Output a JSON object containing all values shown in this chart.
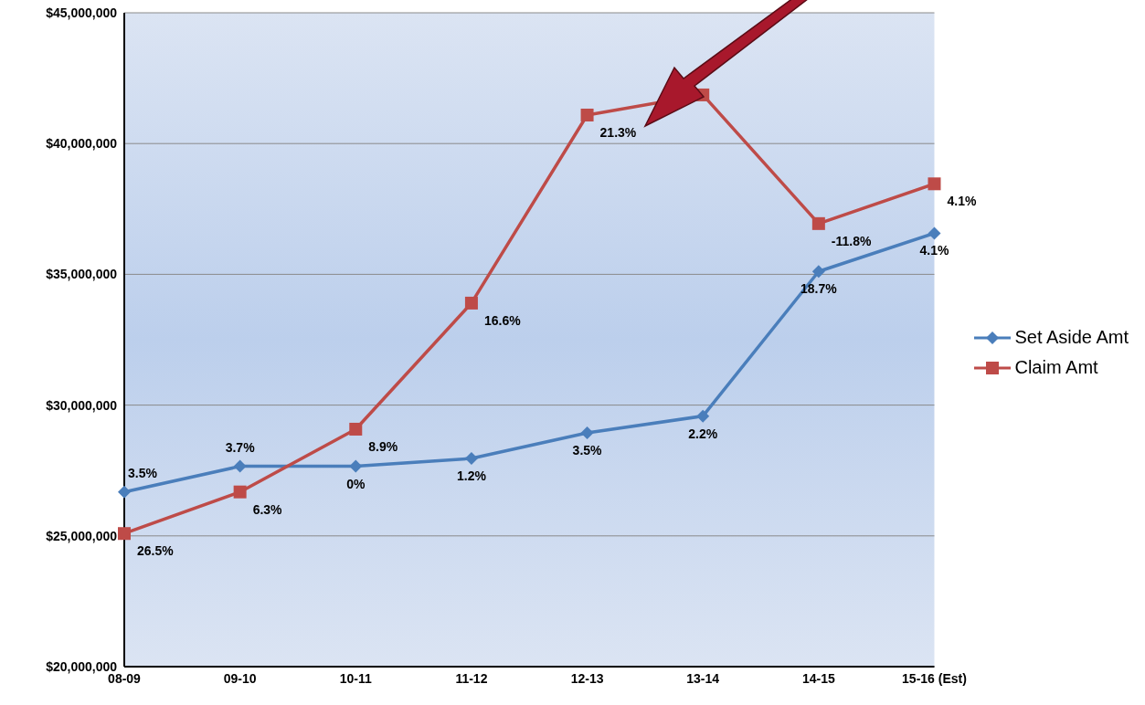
{
  "chart_data": {
    "type": "line",
    "categories": [
      "08-09",
      "09-10",
      "10-11",
      "11-12",
      "12-13",
      "13-14",
      "14-15",
      "15-16 (Est)"
    ],
    "series": [
      {
        "name": "Set Aside Amt",
        "color": "#4a7ebb",
        "marker": "diamond",
        "values": [
          26680000,
          27660000,
          27660000,
          27960000,
          28940000,
          29580000,
          35110000,
          36570000
        ]
      },
      {
        "name": "Claim Amt",
        "color": "#be4b48",
        "marker": "square",
        "values": [
          25090000,
          26680000,
          29080000,
          33900000,
          41090000,
          41860000,
          36940000,
          38460000
        ]
      }
    ],
    "annotations": [
      {
        "text": "3.5%",
        "x": "08-09",
        "y": 26680000
      },
      {
        "text": "3.7%",
        "x": "09-10",
        "y": 27660000
      },
      {
        "text": "0%",
        "x": "10-11",
        "y": 27660000
      },
      {
        "text": "1.2%",
        "x": "11-12",
        "y": 27960000
      },
      {
        "text": "3.5%",
        "x": "12-13",
        "y": 28940000
      },
      {
        "text": "2.2%",
        "x": "13-14",
        "y": 29580000
      },
      {
        "text": "18.7%",
        "x": "14-15",
        "y": 35110000
      },
      {
        "text": "4.1%",
        "x": "15-16 (Est)",
        "y": 36570000
      },
      {
        "text": "26.5%",
        "x": "08-09",
        "y": 25090000
      },
      {
        "text": "6.3%",
        "x": "09-10",
        "y": 26680000
      },
      {
        "text": "8.9%",
        "x": "10-11",
        "y": 29080000
      },
      {
        "text": "16.6%",
        "x": "11-12",
        "y": 33900000
      },
      {
        "text": "21.3%",
        "x": "12-13",
        "y": 41090000
      },
      {
        "text": "-11.8%",
        "x": "14-15",
        "y": 36940000
      },
      {
        "text": "4.1%",
        "x": "15-16 (Est)",
        "y": 38460000
      }
    ],
    "ylim": [
      20000000,
      45000000
    ],
    "yticks": [
      {
        "value": 20000000,
        "label": "$20,000,000"
      },
      {
        "value": 25000000,
        "label": "$25,000,000"
      },
      {
        "value": 30000000,
        "label": "$30,000,000"
      },
      {
        "value": 35000000,
        "label": "$35,000,000"
      },
      {
        "value": 40000000,
        "label": "$40,000,000"
      },
      {
        "value": 45000000,
        "label": "$45,000,000"
      }
    ],
    "grid": "y",
    "legend": "right",
    "line_style": "solid"
  }
}
